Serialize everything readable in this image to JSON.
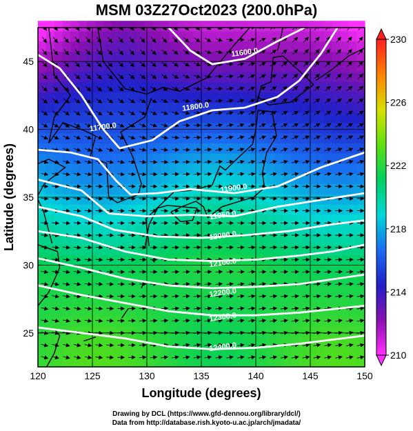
{
  "title": "MSM 03Z27Oct2023 (200.0hPa)",
  "xlabel": "Longitude (degrees)",
  "ylabel": "Latitude  (degrees)",
  "credit_line1": "Drawing by DCL (https://www.gfd-dennou.org/library/dcl/)",
  "credit_line2": "Data from http://database.rish.kyoto-u.ac.jp/arch/jmadata/",
  "chart_data": {
    "type": "heatmap",
    "xlim": [
      120,
      150
    ],
    "ylim": [
      22.5,
      47.5
    ],
    "x_ticks": [
      120,
      125,
      130,
      135,
      140,
      145,
      150
    ],
    "y_ticks": [
      25,
      30,
      35,
      40,
      45
    ],
    "grid": true,
    "colorbar": {
      "range": [
        210,
        230
      ],
      "ticks": [
        210,
        214,
        218,
        222,
        226,
        230
      ],
      "colors": [
        "#ff30ff",
        "#8a10b0",
        "#2020c8",
        "#1a6cf0",
        "#00d8d8",
        "#00d060",
        "#60e010",
        "#d8e000",
        "#ff8000",
        "#ff2020"
      ]
    },
    "contours": [
      {
        "label": "11600.0",
        "lon": 139.0,
        "lat": 45.5
      },
      {
        "label": "11700.0",
        "lon": 126.0,
        "lat": 40.0
      },
      {
        "label": "11800.0",
        "lon": 134.5,
        "lat": 41.5
      },
      {
        "label": "11900.0",
        "lon": 138.0,
        "lat": 35.5
      },
      {
        "label": "11950.0",
        "lon": 137.0,
        "lat": 33.5
      },
      {
        "label": "12000.0",
        "lon": 137.0,
        "lat": 32.0
      },
      {
        "label": "12100.0",
        "lon": 137.0,
        "lat": 30.0
      },
      {
        "label": "12200.0",
        "lon": 137.0,
        "lat": 27.8
      },
      {
        "label": "12300.0",
        "lon": 137.0,
        "lat": 26.0
      },
      {
        "label": "12400.0",
        "lon": 137.0,
        "lat": 23.8
      }
    ],
    "wind": "vectors"
  }
}
